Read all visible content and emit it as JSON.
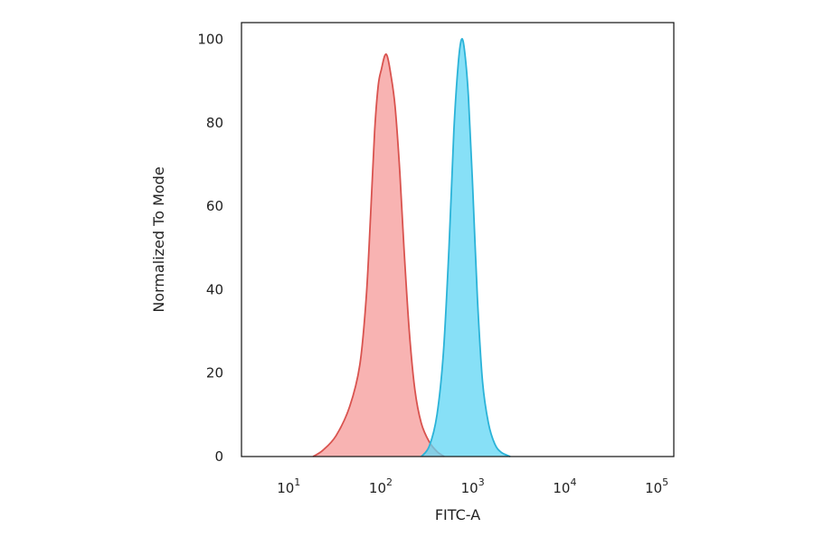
{
  "chart_data": {
    "type": "area",
    "xlabel": "FITC-A",
    "ylabel": "Normalized To Mode",
    "x_scale": "log",
    "xlim": [
      3,
      150000
    ],
    "ylim": [
      0,
      104
    ],
    "y_ticks": [
      0,
      20,
      40,
      60,
      80,
      100
    ],
    "x_ticks": [
      {
        "value": 10,
        "base": "10",
        "exp": "1"
      },
      {
        "value": 100,
        "base": "10",
        "exp": "2"
      },
      {
        "value": 1000,
        "base": "10",
        "exp": "3"
      },
      {
        "value": 10000,
        "base": "10",
        "exp": "4"
      },
      {
        "value": 100000,
        "base": "10",
        "exp": "5"
      }
    ],
    "grid": false,
    "legend": "none",
    "series": [
      {
        "color": "#d9534f",
        "fill": "#f59a98",
        "points": [
          [
            18,
            0
          ],
          [
            23,
            1.5
          ],
          [
            32,
            5
          ],
          [
            45,
            12
          ],
          [
            58,
            22
          ],
          [
            68,
            38
          ],
          [
            76,
            58
          ],
          [
            84,
            78
          ],
          [
            92,
            89
          ],
          [
            100,
            93
          ],
          [
            108,
            96
          ],
          [
            115,
            96
          ],
          [
            125,
            92
          ],
          [
            140,
            84
          ],
          [
            158,
            68
          ],
          [
            175,
            50
          ],
          [
            200,
            30
          ],
          [
            230,
            16
          ],
          [
            270,
            8
          ],
          [
            330,
            3.5
          ],
          [
            400,
            1.2
          ],
          [
            480,
            0
          ]
        ]
      },
      {
        "color": "#2bb3d8",
        "fill": "#5fd6f4",
        "points": [
          [
            270,
            0
          ],
          [
            330,
            2.5
          ],
          [
            400,
            10
          ],
          [
            470,
            25
          ],
          [
            540,
            50
          ],
          [
            610,
            78
          ],
          [
            680,
            94
          ],
          [
            740,
            100
          ],
          [
            800,
            97
          ],
          [
            880,
            86
          ],
          [
            980,
            64
          ],
          [
            1100,
            38
          ],
          [
            1250,
            18
          ],
          [
            1450,
            8
          ],
          [
            1700,
            3
          ],
          [
            2000,
            1
          ],
          [
            2500,
            0
          ]
        ]
      }
    ]
  }
}
